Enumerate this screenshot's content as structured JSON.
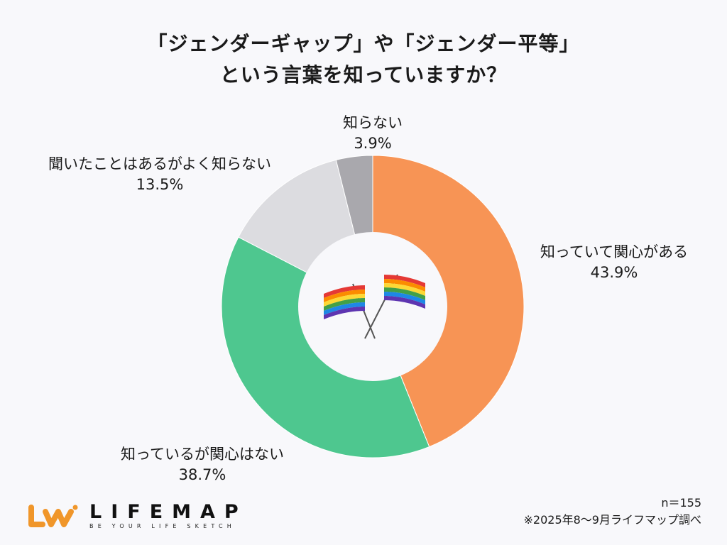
{
  "title": {
    "line1": "「ジェンダーギャップ」や「ジェンダー平等」",
    "line2": "という言葉を知っていますか？"
  },
  "labels": {
    "known_interested": {
      "name": "知っていて関心がある",
      "value": "43.9%"
    },
    "known_not_interested": {
      "name": "知っているが関心はない",
      "value": "38.7%"
    },
    "heard_not_well_known": {
      "name": "聞いたことはあるがよく知らない",
      "value": "13.5%"
    },
    "unknown": {
      "name": "知らない",
      "value": "3.9%"
    }
  },
  "footer": {
    "sample_size": "n＝155",
    "source": "※2025年8～9月ライフマップ調べ"
  },
  "logo": {
    "mark": "LW",
    "name": "LIFEMAP",
    "tagline": "BE YOUR LIFE SKETCH",
    "color": "#f0962a"
  },
  "center_icon": "crossed-rainbow-flags-icon",
  "chart_data": {
    "type": "pie",
    "subtype": "donut",
    "title": "「ジェンダーギャップ」や「ジェンダー平等」という言葉を知っていますか？",
    "categories": [
      "知っていて関心がある",
      "知っているが関心はない",
      "聞いたことはあるがよく知らない",
      "知らない"
    ],
    "values": [
      43.9,
      38.7,
      13.5,
      3.9
    ],
    "unit": "%",
    "colors": [
      "#f79455",
      "#4ec78f",
      "#dcdce0",
      "#a9a8ad"
    ],
    "start_angle_deg": 0,
    "direction": "clockwise",
    "n": 155,
    "legend": "none (direct labels)"
  }
}
